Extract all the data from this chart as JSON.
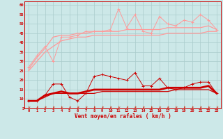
{
  "x": [
    0,
    1,
    2,
    3,
    4,
    5,
    6,
    7,
    8,
    9,
    10,
    11,
    12,
    13,
    14,
    15,
    16,
    17,
    18,
    19,
    20,
    21,
    22,
    23
  ],
  "line1_y": [
    27,
    33,
    38,
    30,
    43,
    43,
    44,
    46,
    46,
    46,
    47,
    58,
    48,
    55,
    46,
    45,
    54,
    50,
    49,
    52,
    51,
    55,
    52,
    47
  ],
  "line2_y": [
    26,
    32,
    37,
    43,
    44,
    44,
    45,
    45,
    46,
    46,
    46,
    46,
    47,
    47,
    47,
    47,
    47,
    48,
    48,
    48,
    48,
    48,
    49,
    47
  ],
  "line3_y": [
    25,
    30,
    35,
    38,
    41,
    42,
    43,
    43,
    44,
    44,
    44,
    44,
    44,
    44,
    44,
    44,
    44,
    45,
    45,
    45,
    45,
    45,
    46,
    46
  ],
  "line4_y": [
    9,
    9,
    12,
    18,
    18,
    11,
    9,
    13,
    22,
    23,
    22,
    21,
    20,
    24,
    17,
    17,
    21,
    16,
    15,
    16,
    18,
    19,
    19,
    13
  ],
  "line5_y": [
    9,
    9,
    12,
    13,
    14,
    13,
    13,
    14,
    15,
    15,
    15,
    15,
    15,
    15,
    15,
    15,
    15,
    16,
    16,
    16,
    16,
    16,
    17,
    13
  ],
  "line6_y": [
    9,
    9,
    11,
    13,
    13,
    13,
    13,
    13,
    13,
    14,
    14,
    14,
    14,
    14,
    14,
    14,
    14,
    14,
    15,
    15,
    15,
    15,
    15,
    13
  ],
  "bg_color": "#cce8e8",
  "grid_color": "#aacccc",
  "xlabel": "Vent moyen/en rafales ( km/h )",
  "ylim": [
    5,
    62
  ],
  "yticks": [
    5,
    10,
    15,
    20,
    25,
    30,
    35,
    40,
    45,
    50,
    55,
    60
  ],
  "color_light": "#ff9999",
  "color_dark": "#cc0000",
  "arrow_color": "#cc2200",
  "marker_light": "+",
  "marker_dark": "+"
}
